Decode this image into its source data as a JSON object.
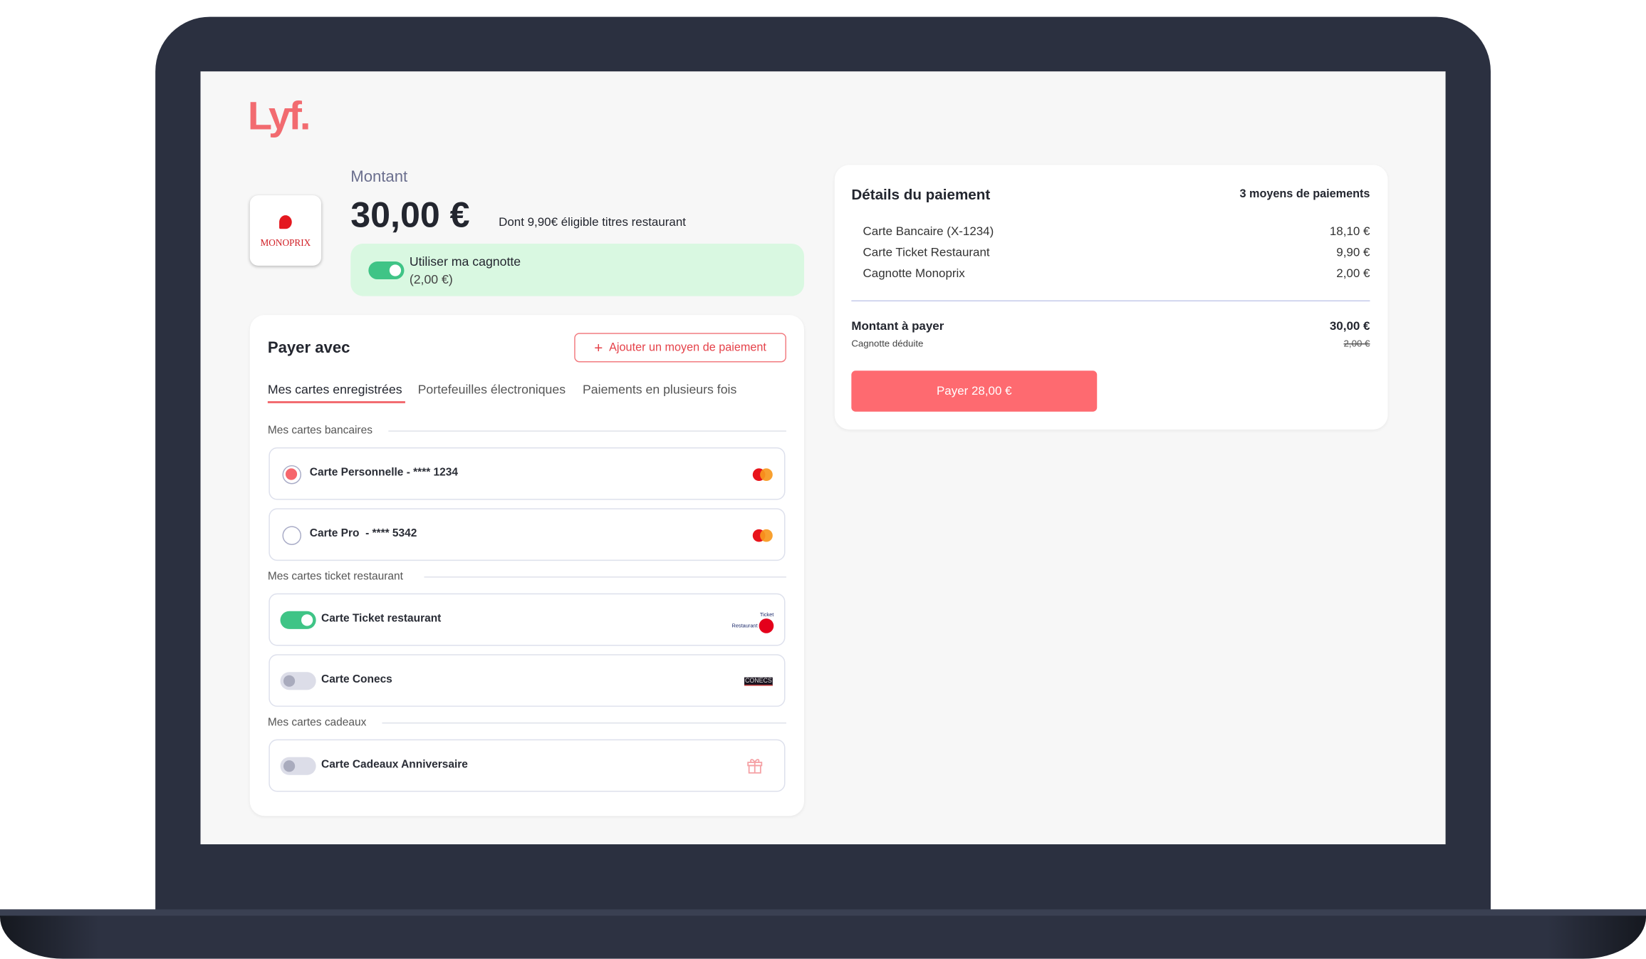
{
  "brand": {
    "logo_text": "Lyf.",
    "accent_color": "#f26b70"
  },
  "merchant": {
    "logo_text": "MONOPRIX"
  },
  "amount": {
    "label": "Montant",
    "value": "30,00 €",
    "note": "Dont 9,90€ éligible titres restaurant"
  },
  "cagnotte": {
    "label": "Utiliser ma cagnotte",
    "value": "(2,00 €)",
    "enabled": true
  },
  "pay_with": {
    "title": "Payer avec",
    "add_button": "Ajouter un moyen de paiement",
    "tabs": [
      {
        "label": "Mes cartes enregistrées",
        "active": true
      },
      {
        "label": "Portefeuilles électroniques",
        "active": false
      },
      {
        "label": "Paiements en plusieurs fois",
        "active": false
      }
    ],
    "sections": [
      {
        "title": "Mes cartes bancaires",
        "items": [
          {
            "name": "Carte Personnelle - **** 1234",
            "selected": true,
            "icon": "mastercard-icon"
          },
          {
            "name": "Carte Pro  - **** 5342",
            "selected": false,
            "icon": "mastercard-icon"
          }
        ]
      },
      {
        "title": "Mes cartes ticket restaurant",
        "items": [
          {
            "name": "Carte Ticket restaurant",
            "enabled": true,
            "icon": "ticket-restaurant-edenred-logo"
          },
          {
            "name": "Carte Conecs",
            "enabled": false,
            "icon": "conecs-logo"
          }
        ]
      },
      {
        "title": "Mes cartes cadeaux",
        "items": [
          {
            "name": "Carte Cadeaux Anniversaire",
            "enabled": false,
            "icon": "gift-icon"
          }
        ]
      }
    ]
  },
  "details": {
    "title": "Détails du paiement",
    "count": "3 moyens de paiements",
    "rows": [
      {
        "label": "Carte Bancaire (X-1234)",
        "value": "18,10 €"
      },
      {
        "label": "Carte Ticket Restaurant",
        "value": "9,90 €"
      },
      {
        "label": "Cagnotte Monoprix",
        "value": "2,00 €"
      }
    ],
    "total_label": "Montant à payer",
    "total_value": "30,00 €",
    "deduction_label": "Cagnotte déduite",
    "deduction_value": "2,00 €",
    "pay_button": "Payer 28,00 €"
  }
}
